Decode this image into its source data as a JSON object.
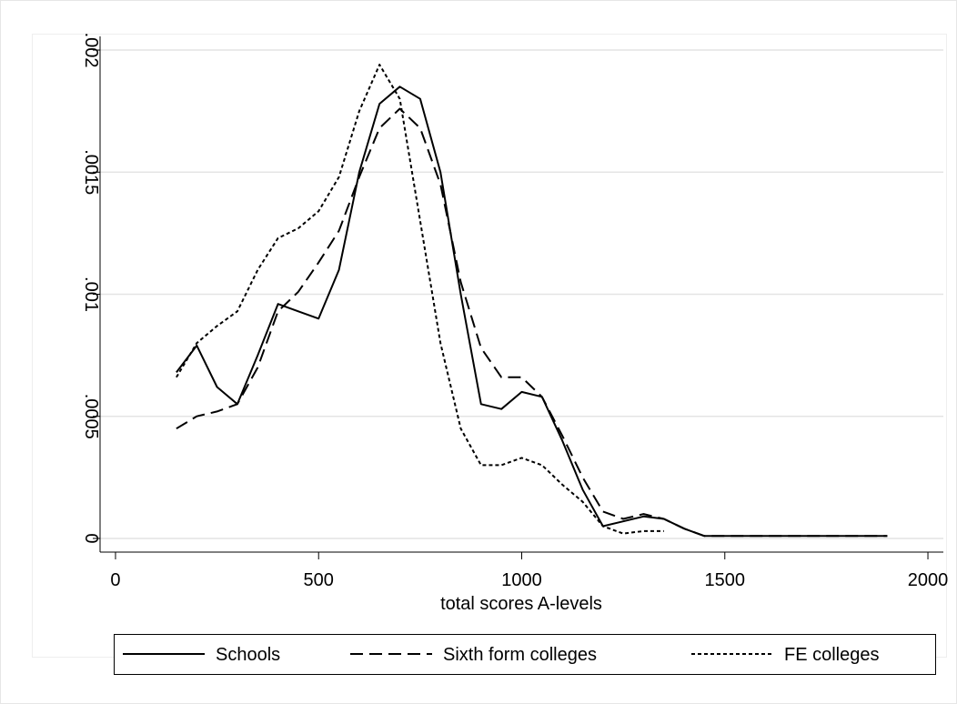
{
  "chart_data": {
    "type": "line",
    "xlabel": "total scores A-levels",
    "x": [
      150,
      200,
      250,
      300,
      350,
      400,
      450,
      500,
      550,
      600,
      650,
      700,
      750,
      800,
      850,
      900,
      950,
      1000,
      1050,
      1100,
      1150,
      1200,
      1250,
      1300,
      1350,
      1400,
      1450,
      1500,
      1550,
      1600,
      1650,
      1700,
      1750,
      1800,
      1850,
      1900
    ],
    "series": [
      {
        "name": "Schools",
        "color": "#000000",
        "line_style": "solid",
        "values": [
          0.00068,
          0.00079,
          0.00062,
          0.00055,
          0.00075,
          0.00096,
          0.00093,
          0.0009,
          0.0011,
          0.0015,
          0.00178,
          0.00185,
          0.0018,
          0.0015,
          0.001,
          0.00055,
          0.00053,
          0.0006,
          0.00058,
          0.0004,
          0.0002,
          5e-05,
          7e-05,
          9e-05,
          8e-05,
          4e-05,
          1e-05,
          1e-05,
          1e-05,
          1e-05,
          1e-05,
          1e-05,
          1e-05,
          1e-05,
          1e-05,
          1e-05
        ]
      },
      {
        "name": "Sixth form colleges",
        "color": "#000000",
        "line_style": "dashed",
        "values": [
          0.00045,
          0.0005,
          0.00052,
          0.00055,
          0.0007,
          0.00093,
          0.00101,
          0.00113,
          0.00126,
          0.00148,
          0.00168,
          0.00176,
          0.00168,
          0.00145,
          0.00105,
          0.00078,
          0.00066,
          0.00066,
          0.00058,
          0.00042,
          0.00025,
          0.00011,
          8e-05,
          0.0001,
          8e-05,
          4e-05,
          1e-05,
          1e-05,
          1e-05,
          1e-05,
          1e-05,
          1e-05,
          1e-05,
          1e-05,
          1e-05,
          1e-05
        ]
      },
      {
        "name": "FE colleges",
        "color": "#000000",
        "line_style": "dotted",
        "values": [
          0.00066,
          0.0008,
          0.00087,
          0.00093,
          0.0011,
          0.00123,
          0.00127,
          0.00134,
          0.00148,
          0.00175,
          0.00194,
          0.0018,
          0.0013,
          0.0008,
          0.00045,
          0.0003,
          0.0003,
          0.00033,
          0.0003,
          0.00022,
          0.00015,
          5e-05,
          2e-05,
          3e-05,
          3e-05,
          null,
          null,
          null,
          null,
          null,
          null,
          null,
          null,
          null,
          null,
          null
        ]
      }
    ],
    "xlim": [
      -38,
      2038
    ],
    "xticks": [
      0,
      500,
      1000,
      1500,
      2000
    ],
    "ylim": [
      -5.6e-05,
      0.002056
    ],
    "yticks": [
      0,
      {
        "value": 0.0005,
        "label": ".0005"
      },
      {
        "value": 0.001,
        "label": ".001"
      },
      {
        "value": 0.0015,
        "label": ".0015"
      },
      {
        "value": 0.002,
        "label": ".002"
      }
    ],
    "grid": true,
    "legend": "bottom"
  }
}
